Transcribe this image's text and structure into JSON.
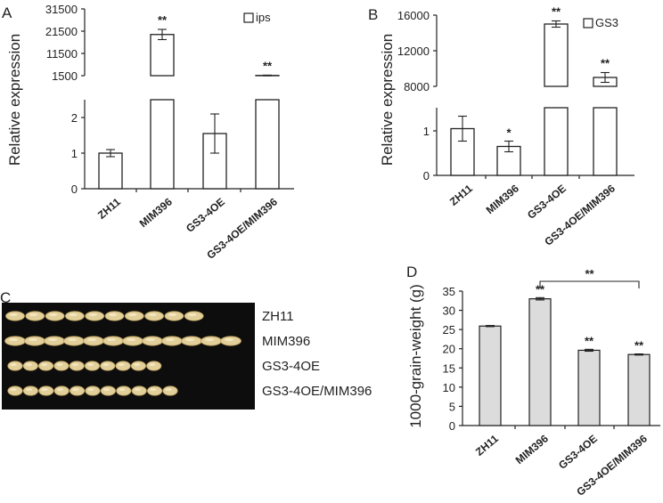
{
  "panels": {
    "a": "A",
    "b": "B",
    "c": "C",
    "d": "D"
  },
  "chart_data": [
    {
      "id": "A",
      "type": "bar",
      "ylabel": "Relative expression",
      "legend": "ips",
      "legend_position": "top-right",
      "categories": [
        "ZH11",
        "MIM396",
        "GS3-4OE",
        "GS3-4OE/MIM396"
      ],
      "axis_break": true,
      "lower_ticks": [
        "0",
        "1",
        "2"
      ],
      "upper_ticks": [
        "1500",
        "11500",
        "21500",
        "31500"
      ],
      "values": [
        1.0,
        20000,
        1.55,
        1600
      ],
      "errors": [
        0.1,
        2300,
        0.55,
        150
      ],
      "significance": [
        "",
        "**",
        "",
        "**"
      ]
    },
    {
      "id": "B",
      "type": "bar",
      "ylabel": "Relative expression",
      "legend": "GS3",
      "legend_position": "top-right",
      "categories": [
        "ZH11",
        "MIM396",
        "GS3-4OE",
        "GS3-4OE/MIM396"
      ],
      "axis_break": true,
      "lower_ticks": [
        "0",
        "1"
      ],
      "upper_ticks": [
        "8000",
        "12000",
        "16000"
      ],
      "values": [
        1.05,
        0.65,
        15000,
        9000
      ],
      "errors": [
        0.28,
        0.12,
        350,
        550
      ],
      "significance": [
        "",
        "*",
        "**",
        "**"
      ]
    },
    {
      "id": "D",
      "type": "bar",
      "ylabel": "1000-grain-weight (g)",
      "categories": [
        "ZH11",
        "MIM396",
        "GS3-4OE",
        "GS3-4OE/MIM396"
      ],
      "ylim": [
        0,
        35
      ],
      "ticks": [
        "0",
        "5",
        "10",
        "15",
        "20",
        "25",
        "30",
        "35"
      ],
      "values": [
        25.9,
        33.0,
        19.6,
        18.5
      ],
      "errors": [
        0.15,
        0.3,
        0.25,
        0.15
      ],
      "significance": [
        "",
        "**",
        "**",
        "**"
      ],
      "bracket": {
        "from": "MIM396",
        "to": "GS3-4OE/MIM396",
        "label": "**"
      }
    }
  ],
  "grain_photo": {
    "rows": [
      {
        "label": "ZH11",
        "grains": 10
      },
      {
        "label": "MIM396",
        "grains": 12
      },
      {
        "label": "GS3-4OE",
        "grains": 10
      },
      {
        "label": "GS3-4OE/MIM396",
        "grains": 11
      }
    ]
  }
}
